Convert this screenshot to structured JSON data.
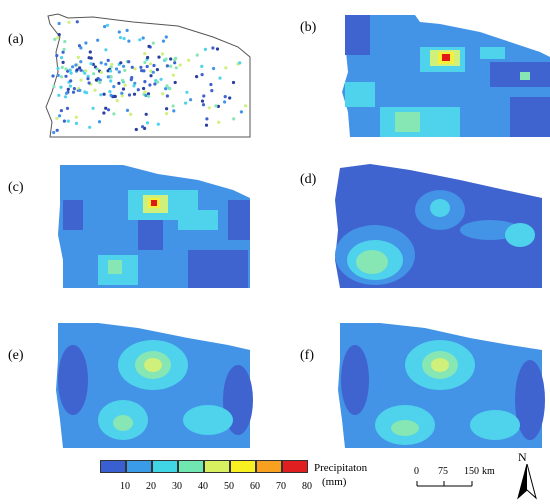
{
  "panels": [
    {
      "label": "(a)"
    },
    {
      "label": "(b)"
    },
    {
      "label": "(c)"
    },
    {
      "label": "(d)"
    },
    {
      "label": "(e)"
    },
    {
      "label": "(f)"
    }
  ],
  "legend": {
    "title_line1": "Precipitaton",
    "title_line2": "(mm)",
    "ticks": [
      "10",
      "20",
      "30",
      "40",
      "50",
      "60",
      "70",
      "80"
    ],
    "colors": [
      "#3a5fd0",
      "#3a9be8",
      "#40d6e6",
      "#70e6b0",
      "#d8f060",
      "#f8f020",
      "#f8a020",
      "#e02020"
    ]
  },
  "scalebar": {
    "labels": [
      "0",
      "75",
      "150"
    ],
    "unit": "km"
  },
  "north_arrow": {
    "label": "N"
  },
  "colors": {
    "dark_blue": "#3f63cf",
    "mid_blue": "#4393e6",
    "cyan": "#4fd2ec",
    "green": "#86e6b4",
    "yellow_green": "#cff07a",
    "yellow": "#f4f03c",
    "red": "#e01818"
  }
}
